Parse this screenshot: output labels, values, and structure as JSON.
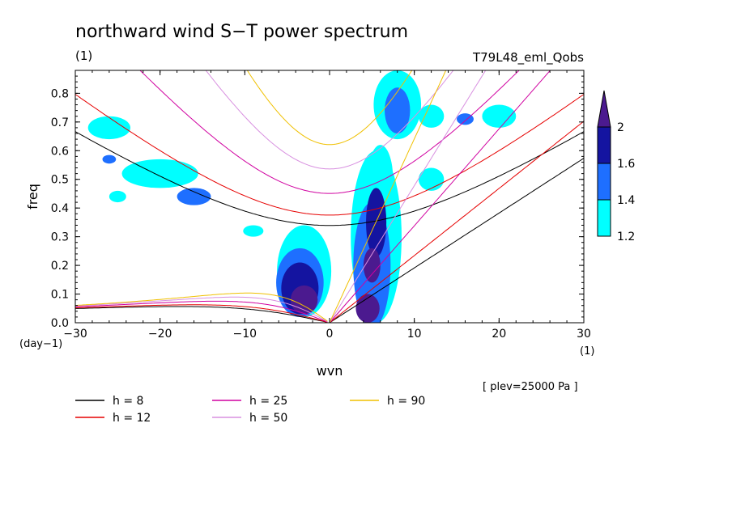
{
  "chart_data": {
    "type": "heatmap",
    "title": "northward wind S−T power spectrum",
    "subtitle_left": "(1)",
    "subtitle_right": "T79L48_eml_Qobs",
    "xlabel": "wvn",
    "ylabel": "freq",
    "x_unit": "(1)",
    "y_unit": "(day−1)",
    "xlim": [
      -30,
      30
    ],
    "ylim": [
      0,
      0.88
    ],
    "xticks": [
      -30,
      -20,
      -10,
      0,
      10,
      20,
      30
    ],
    "xtick_labels": [
      "−30",
      "−20",
      "−10",
      "0",
      "10",
      "20",
      "30"
    ],
    "yticks": [
      0,
      0.1,
      0.2,
      0.3,
      0.4,
      0.5,
      0.6,
      0.7,
      0.8
    ],
    "ytick_labels": [
      "0.0",
      "0.1",
      "0.2",
      "0.3",
      "0.4",
      "0.5",
      "0.6",
      "0.7",
      "0.8"
    ],
    "annotation": "[ plev=25000 Pa ]",
    "colorbar": {
      "levels": [
        1.2,
        1.4,
        1.6,
        2
      ],
      "labels": [
        "1.2",
        "1.4",
        "1.6",
        "2"
      ],
      "colors": [
        "#00ffff",
        "#1e6fff",
        "#1414a0",
        "#4b1a8f"
      ]
    },
    "dispersion_curves": [
      {
        "name": "h =  8",
        "h": 8,
        "color": "#000000"
      },
      {
        "name": "h = 12",
        "h": 12,
        "color": "#e60000"
      },
      {
        "name": "h = 25",
        "h": 25,
        "color": "#d000a0"
      },
      {
        "name": "h = 50",
        "h": 50,
        "color": "#d890e0"
      },
      {
        "name": "h = 90",
        "h": 90,
        "color": "#f0c000"
      }
    ],
    "blobs": [
      {
        "x": -3,
        "y": 0.08,
        "level": 3,
        "rx": 1.6,
        "ry": 0.05
      },
      {
        "x": -3.5,
        "y": 0.12,
        "level": 2,
        "rx": 2.2,
        "ry": 0.09
      },
      {
        "x": -3.5,
        "y": 0.14,
        "level": 1,
        "rx": 2.8,
        "ry": 0.12
      },
      {
        "x": -3,
        "y": 0.18,
        "level": 0,
        "rx": 3.2,
        "ry": 0.16
      },
      {
        "x": 4.5,
        "y": 0.05,
        "level": 3,
        "rx": 1.4,
        "ry": 0.05
      },
      {
        "x": 5.0,
        "y": 0.2,
        "level": 3,
        "rx": 1.0,
        "ry": 0.06
      },
      {
        "x": 5.5,
        "y": 0.35,
        "level": 2,
        "rx": 1.2,
        "ry": 0.12
      },
      {
        "x": 5,
        "y": 0.2,
        "level": 1,
        "rx": 2.2,
        "ry": 0.22
      },
      {
        "x": 5.5,
        "y": 0.3,
        "level": 0,
        "rx": 3.0,
        "ry": 0.3
      },
      {
        "x": 6,
        "y": 0.5,
        "level": 0,
        "rx": 1.5,
        "ry": 0.12
      },
      {
        "x": 8,
        "y": 0.74,
        "level": 1,
        "rx": 1.5,
        "ry": 0.08
      },
      {
        "x": 8,
        "y": 0.76,
        "level": 0,
        "rx": 2.8,
        "ry": 0.12
      },
      {
        "x": -20,
        "y": 0.52,
        "level": 0,
        "rx": 4.5,
        "ry": 0.05
      },
      {
        "x": -16,
        "y": 0.44,
        "level": 1,
        "rx": 2.0,
        "ry": 0.03
      },
      {
        "x": -26,
        "y": 0.68,
        "level": 0,
        "rx": 2.5,
        "ry": 0.04
      },
      {
        "x": -26,
        "y": 0.57,
        "level": 1,
        "rx": 0.8,
        "ry": 0.015
      },
      {
        "x": 12,
        "y": 0.72,
        "level": 0,
        "rx": 1.5,
        "ry": 0.04
      },
      {
        "x": 16,
        "y": 0.71,
        "level": 1,
        "rx": 1.0,
        "ry": 0.02
      },
      {
        "x": 20,
        "y": 0.72,
        "level": 0,
        "rx": 2.0,
        "ry": 0.04
      },
      {
        "x": 12,
        "y": 0.5,
        "level": 0,
        "rx": 1.5,
        "ry": 0.04
      },
      {
        "x": -9,
        "y": 0.32,
        "level": 0,
        "rx": 1.2,
        "ry": 0.02
      },
      {
        "x": -25,
        "y": 0.44,
        "level": 0,
        "rx": 1.0,
        "ry": 0.02
      }
    ]
  }
}
